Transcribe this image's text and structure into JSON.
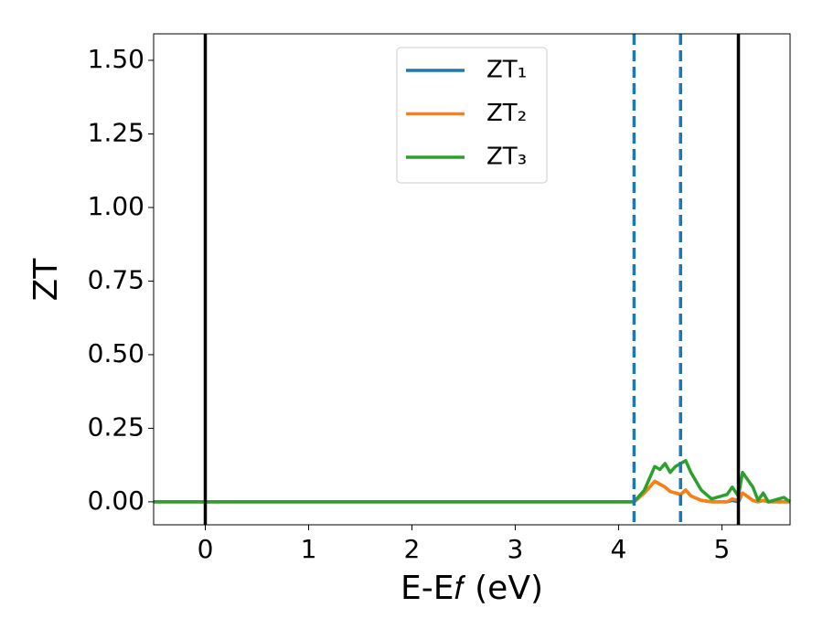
{
  "chart_data": {
    "type": "line",
    "x_label": "E-E𝑓 (eV)",
    "y_label": "ZT",
    "x": [
      -0.5,
      4.15,
      4.25,
      4.35,
      4.4,
      4.45,
      4.5,
      4.55,
      4.6,
      4.65,
      4.7,
      4.8,
      4.9,
      5.0,
      5.05,
      5.1,
      5.16,
      5.2,
      5.3,
      5.35,
      5.4,
      5.45,
      5.6,
      5.66
    ],
    "series": [
      {
        "name": "ZT₁",
        "color": "#1f77b4",
        "values": [
          0,
          0,
          0.03,
          0.07,
          0.06,
          0.05,
          0.035,
          0.03,
          0.025,
          0.04,
          0.02,
          0.005,
          0,
          0,
          0,
          0.005,
          0,
          0.03,
          0.005,
          0,
          0.005,
          0,
          0,
          0
        ]
      },
      {
        "name": "ZT₂",
        "color": "#ff7f0e",
        "values": [
          0,
          0,
          0.03,
          0.07,
          0.06,
          0.05,
          0.035,
          0.03,
          0.025,
          0.04,
          0.02,
          0.005,
          0,
          0,
          0,
          0.01,
          0.005,
          0.03,
          0.005,
          0,
          0.005,
          0,
          0,
          0
        ]
      },
      {
        "name": "ZT₃",
        "color": "#2ca02c",
        "values": [
          0,
          0,
          0.04,
          0.12,
          0.11,
          0.13,
          0.1,
          0.12,
          0.13,
          0.14,
          0.1,
          0.04,
          0.01,
          0.02,
          0.025,
          0.05,
          0.02,
          0.1,
          0.05,
          0.005,
          0.03,
          0,
          0.015,
          0
        ]
      }
    ],
    "vlines": [
      {
        "x": 0,
        "color": "#000000",
        "style": "solid"
      },
      {
        "x": 5.16,
        "color": "#000000",
        "style": "solid"
      },
      {
        "x": 4.15,
        "color": "#1f77b4",
        "style": "dashed"
      },
      {
        "x": 4.6,
        "color": "#1f77b4",
        "style": "dashed"
      }
    ],
    "xlim": [
      -0.5,
      5.66
    ],
    "ylim": [
      -0.078,
      1.59
    ],
    "xticks": [
      0,
      1,
      2,
      3,
      4,
      5
    ],
    "yticks": [
      {
        "value": 0,
        "label": "0.00"
      },
      {
        "value": 0.25,
        "label": "0.25"
      },
      {
        "value": 0.5,
        "label": "0.50"
      },
      {
        "value": 0.75,
        "label": "0.75"
      },
      {
        "value": 1,
        "label": "1.00"
      },
      {
        "value": 1.25,
        "label": "1.25"
      },
      {
        "value": 1.5,
        "label": "1.50"
      }
    ],
    "legend": "upper center",
    "grid": false
  }
}
